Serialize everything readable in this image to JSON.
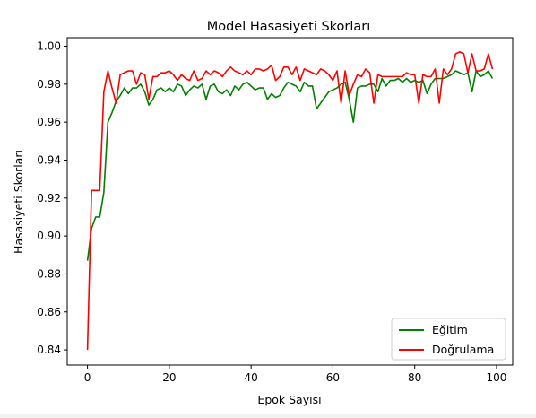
{
  "chart_data": {
    "type": "line",
    "title": "Model Hasasiyeti Skorları",
    "xlabel": "Epok Sayısı",
    "ylabel": "Hasasiyeti Skorları",
    "xlim": [
      -4.95,
      103.95
    ],
    "ylim": [
      0.832,
      1.0045
    ],
    "xticks": [
      0,
      20,
      40,
      60,
      80,
      100
    ],
    "xtick_labels": [
      "0",
      "20",
      "40",
      "60",
      "80",
      "100"
    ],
    "yticks": [
      0.84,
      0.86,
      0.88,
      0.9,
      0.92,
      0.94,
      0.96,
      0.98,
      1.0
    ],
    "ytick_labels": [
      "0.84",
      "0.86",
      "0.88",
      "0.90",
      "0.92",
      "0.94",
      "0.96",
      "0.98",
      "1.00"
    ],
    "grid": false,
    "legend_position": "lower-right",
    "x": [
      0,
      1,
      2,
      3,
      4,
      5,
      6,
      7,
      8,
      9,
      10,
      11,
      12,
      13,
      14,
      15,
      16,
      17,
      18,
      19,
      20,
      21,
      22,
      23,
      24,
      25,
      26,
      27,
      28,
      29,
      30,
      31,
      32,
      33,
      34,
      35,
      36,
      37,
      38,
      39,
      40,
      41,
      42,
      43,
      44,
      45,
      46,
      47,
      48,
      49,
      50,
      51,
      52,
      53,
      54,
      55,
      56,
      57,
      58,
      59,
      60,
      61,
      62,
      63,
      64,
      65,
      66,
      67,
      68,
      69,
      70,
      71,
      72,
      73,
      74,
      75,
      76,
      77,
      78,
      79,
      80,
      81,
      82,
      83,
      84,
      85,
      86,
      87,
      88,
      89,
      90,
      91,
      92,
      93,
      94,
      95,
      96,
      97,
      98,
      99
    ],
    "series": [
      {
        "name": "Eğitim",
        "color": "#008000",
        "values": [
          0.887,
          0.904,
          0.91,
          0.91,
          0.923,
          0.96,
          0.965,
          0.971,
          0.974,
          0.978,
          0.975,
          0.978,
          0.978,
          0.98,
          0.976,
          0.969,
          0.972,
          0.977,
          0.978,
          0.976,
          0.978,
          0.976,
          0.98,
          0.979,
          0.974,
          0.977,
          0.979,
          0.978,
          0.98,
          0.972,
          0.979,
          0.98,
          0.976,
          0.975,
          0.977,
          0.974,
          0.979,
          0.977,
          0.98,
          0.981,
          0.979,
          0.977,
          0.978,
          0.978,
          0.972,
          0.975,
          0.973,
          0.974,
          0.978,
          0.981,
          0.98,
          0.979,
          0.976,
          0.981,
          0.979,
          0.979,
          0.967,
          0.97,
          0.973,
          0.976,
          0.977,
          0.978,
          0.98,
          0.981,
          0.972,
          0.96,
          0.978,
          0.979,
          0.979,
          0.98,
          0.98,
          0.976,
          0.983,
          0.979,
          0.982,
          0.982,
          0.983,
          0.981,
          0.983,
          0.981,
          0.982,
          0.981,
          0.982,
          0.975,
          0.98,
          0.983,
          0.983,
          0.983,
          0.984,
          0.985,
          0.987,
          0.986,
          0.985,
          0.986,
          0.976,
          0.987,
          0.984,
          0.985,
          0.987,
          0.983
        ]
      },
      {
        "name": "Doğrulama",
        "color": "#ff0000",
        "values": [
          0.84,
          0.924,
          0.924,
          0.924,
          0.976,
          0.987,
          0.978,
          0.97,
          0.985,
          0.986,
          0.987,
          0.987,
          0.98,
          0.986,
          0.985,
          0.972,
          0.984,
          0.984,
          0.986,
          0.986,
          0.987,
          0.985,
          0.982,
          0.985,
          0.983,
          0.982,
          0.987,
          0.982,
          0.983,
          0.987,
          0.985,
          0.987,
          0.986,
          0.984,
          0.987,
          0.989,
          0.987,
          0.986,
          0.985,
          0.987,
          0.985,
          0.988,
          0.988,
          0.987,
          0.988,
          0.99,
          0.982,
          0.984,
          0.989,
          0.989,
          0.985,
          0.989,
          0.982,
          0.988,
          0.987,
          0.986,
          0.985,
          0.988,
          0.987,
          0.985,
          0.982,
          0.987,
          0.97,
          0.987,
          0.974,
          0.98,
          0.985,
          0.984,
          0.988,
          0.986,
          0.97,
          0.985,
          0.984,
          0.984,
          0.984,
          0.984,
          0.984,
          0.984,
          0.986,
          0.985,
          0.985,
          0.97,
          0.985,
          0.984,
          0.984,
          0.988,
          0.97,
          0.988,
          0.985,
          0.988,
          0.996,
          0.997,
          0.996,
          0.986,
          0.996,
          0.987,
          0.987,
          0.988,
          0.996,
          0.988
        ]
      }
    ]
  }
}
